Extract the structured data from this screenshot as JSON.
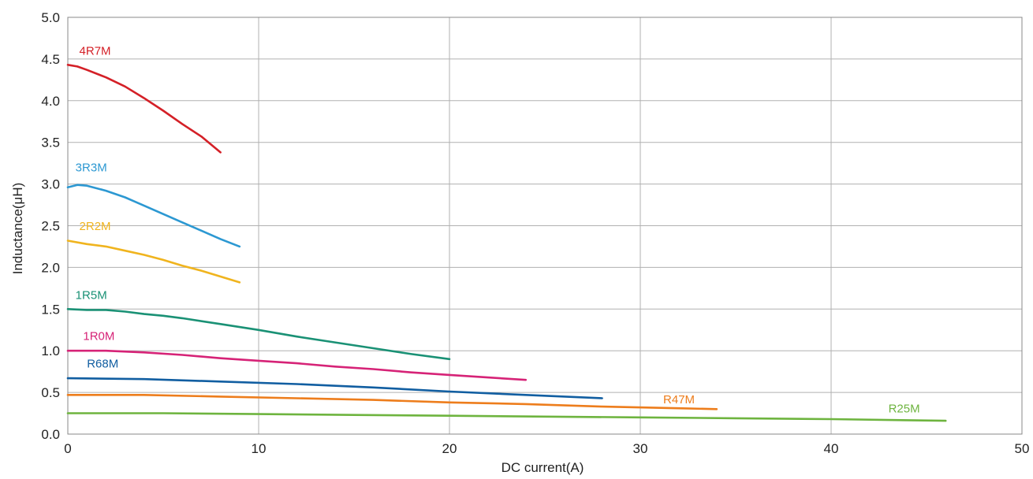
{
  "chart_data": {
    "type": "line",
    "title": "",
    "xlabel": "DC current(A)",
    "ylabel": "Inductance(μH)",
    "xlim": [
      0,
      50
    ],
    "ylim": [
      0,
      5.0
    ],
    "x_ticks": [
      "0",
      "10",
      "20",
      "30",
      "40",
      "50"
    ],
    "y_ticks": [
      "0.0",
      "0.5",
      "1.0",
      "1.5",
      "2.0",
      "2.5",
      "3.0",
      "3.5",
      "4.0",
      "4.5",
      "5.0"
    ],
    "grid": true,
    "legend": "inline labels",
    "series": [
      {
        "name": "4R7M",
        "color": "#d42027",
        "label_at": [
          0.6,
          4.55
        ],
        "x": [
          0,
          0.5,
          1,
          2,
          3,
          4,
          5,
          6,
          7,
          8
        ],
        "y": [
          4.43,
          4.41,
          4.37,
          4.28,
          4.17,
          4.03,
          3.88,
          3.72,
          3.57,
          3.38
        ]
      },
      {
        "name": "3R3M",
        "color": "#2c98d2",
        "label_at": [
          0.4,
          3.15
        ],
        "x": [
          0,
          0.5,
          1,
          2,
          3,
          4,
          5,
          6,
          7,
          8,
          9
        ],
        "y": [
          2.96,
          2.99,
          2.98,
          2.92,
          2.84,
          2.74,
          2.64,
          2.54,
          2.44,
          2.34,
          2.25
        ]
      },
      {
        "name": "2R2M",
        "color": "#f0b41e",
        "label_at": [
          0.6,
          2.45
        ],
        "x": [
          0,
          1,
          2,
          3,
          4,
          5,
          6,
          7,
          8,
          9
        ],
        "y": [
          2.32,
          2.28,
          2.25,
          2.2,
          2.15,
          2.09,
          2.02,
          1.96,
          1.89,
          1.82
        ]
      },
      {
        "name": "1R5M",
        "color": "#1a9175",
        "label_at": [
          0.4,
          1.62
        ],
        "x": [
          0,
          1,
          2,
          3,
          4,
          5,
          6,
          8,
          10,
          12,
          14,
          16,
          18,
          20
        ],
        "y": [
          1.5,
          1.49,
          1.49,
          1.47,
          1.44,
          1.42,
          1.39,
          1.32,
          1.25,
          1.17,
          1.1,
          1.03,
          0.96,
          0.9
        ]
      },
      {
        "name": "1R0M",
        "color": "#d62377",
        "label_at": [
          0.8,
          1.13
        ],
        "x": [
          0,
          2,
          4,
          6,
          8,
          10,
          12,
          14,
          16,
          18,
          20,
          22,
          24
        ],
        "y": [
          1.0,
          1.0,
          0.98,
          0.95,
          0.91,
          0.88,
          0.85,
          0.81,
          0.78,
          0.74,
          0.71,
          0.68,
          0.65
        ]
      },
      {
        "name": "R68M",
        "color": "#115ea1",
        "label_at": [
          1.0,
          0.8
        ],
        "x": [
          0,
          4,
          8,
          12,
          16,
          20,
          24,
          28
        ],
        "y": [
          0.67,
          0.66,
          0.63,
          0.6,
          0.56,
          0.51,
          0.47,
          0.43
        ]
      },
      {
        "name": "R47M",
        "color": "#ed7d1c",
        "label_at": [
          31.2,
          0.37
        ],
        "x": [
          0,
          4,
          8,
          12,
          16,
          20,
          24,
          28,
          32,
          34
        ],
        "y": [
          0.47,
          0.47,
          0.45,
          0.43,
          0.41,
          0.38,
          0.36,
          0.33,
          0.31,
          0.3
        ]
      },
      {
        "name": "R25M",
        "color": "#6eb43f",
        "label_at": [
          43.0,
          0.26
        ],
        "x": [
          0,
          5,
          10,
          15,
          20,
          25,
          30,
          35,
          40,
          46
        ],
        "y": [
          0.25,
          0.25,
          0.24,
          0.23,
          0.22,
          0.21,
          0.2,
          0.19,
          0.18,
          0.16
        ]
      }
    ]
  }
}
